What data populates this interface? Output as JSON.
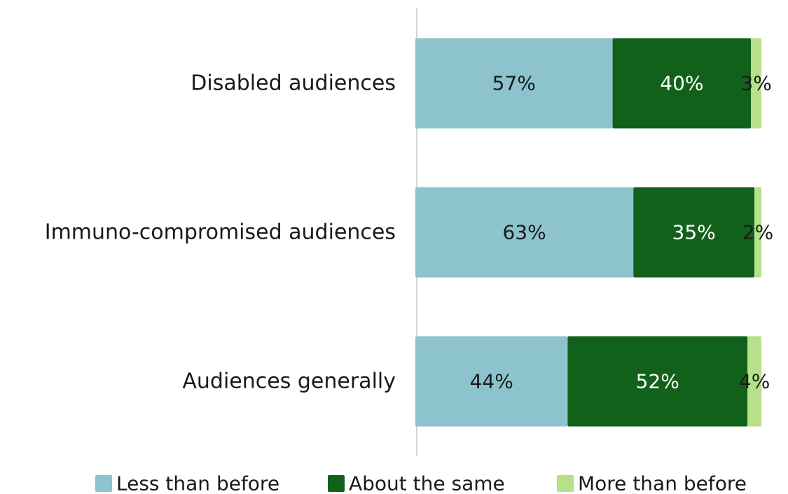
{
  "chart_data": {
    "type": "bar",
    "orientation": "horizontal",
    "stacked": true,
    "categories": [
      "Disabled audiences",
      "Immuno-compromised audiences",
      "Audiences generally"
    ],
    "series": [
      {
        "name": "Less than before",
        "values": [
          57,
          63,
          44
        ],
        "labels": [
          "57%",
          "63%",
          "44%"
        ],
        "color": "#8cc3cc",
        "label_color": "#1a1a1a"
      },
      {
        "name": "About the same",
        "values": [
          40,
          35,
          52
        ],
        "labels": [
          "40%",
          "35%",
          "52%"
        ],
        "color": "#12611b",
        "label_color": "#ffffff"
      },
      {
        "name": "More than before",
        "values": [
          3,
          2,
          4
        ],
        "labels": [
          "3%",
          "2%",
          "4%"
        ],
        "color": "#b6e08a",
        "label_color": "#1a1a1a"
      }
    ],
    "xlim": [
      0,
      100
    ],
    "grid": false,
    "legend_position": "bottom"
  }
}
